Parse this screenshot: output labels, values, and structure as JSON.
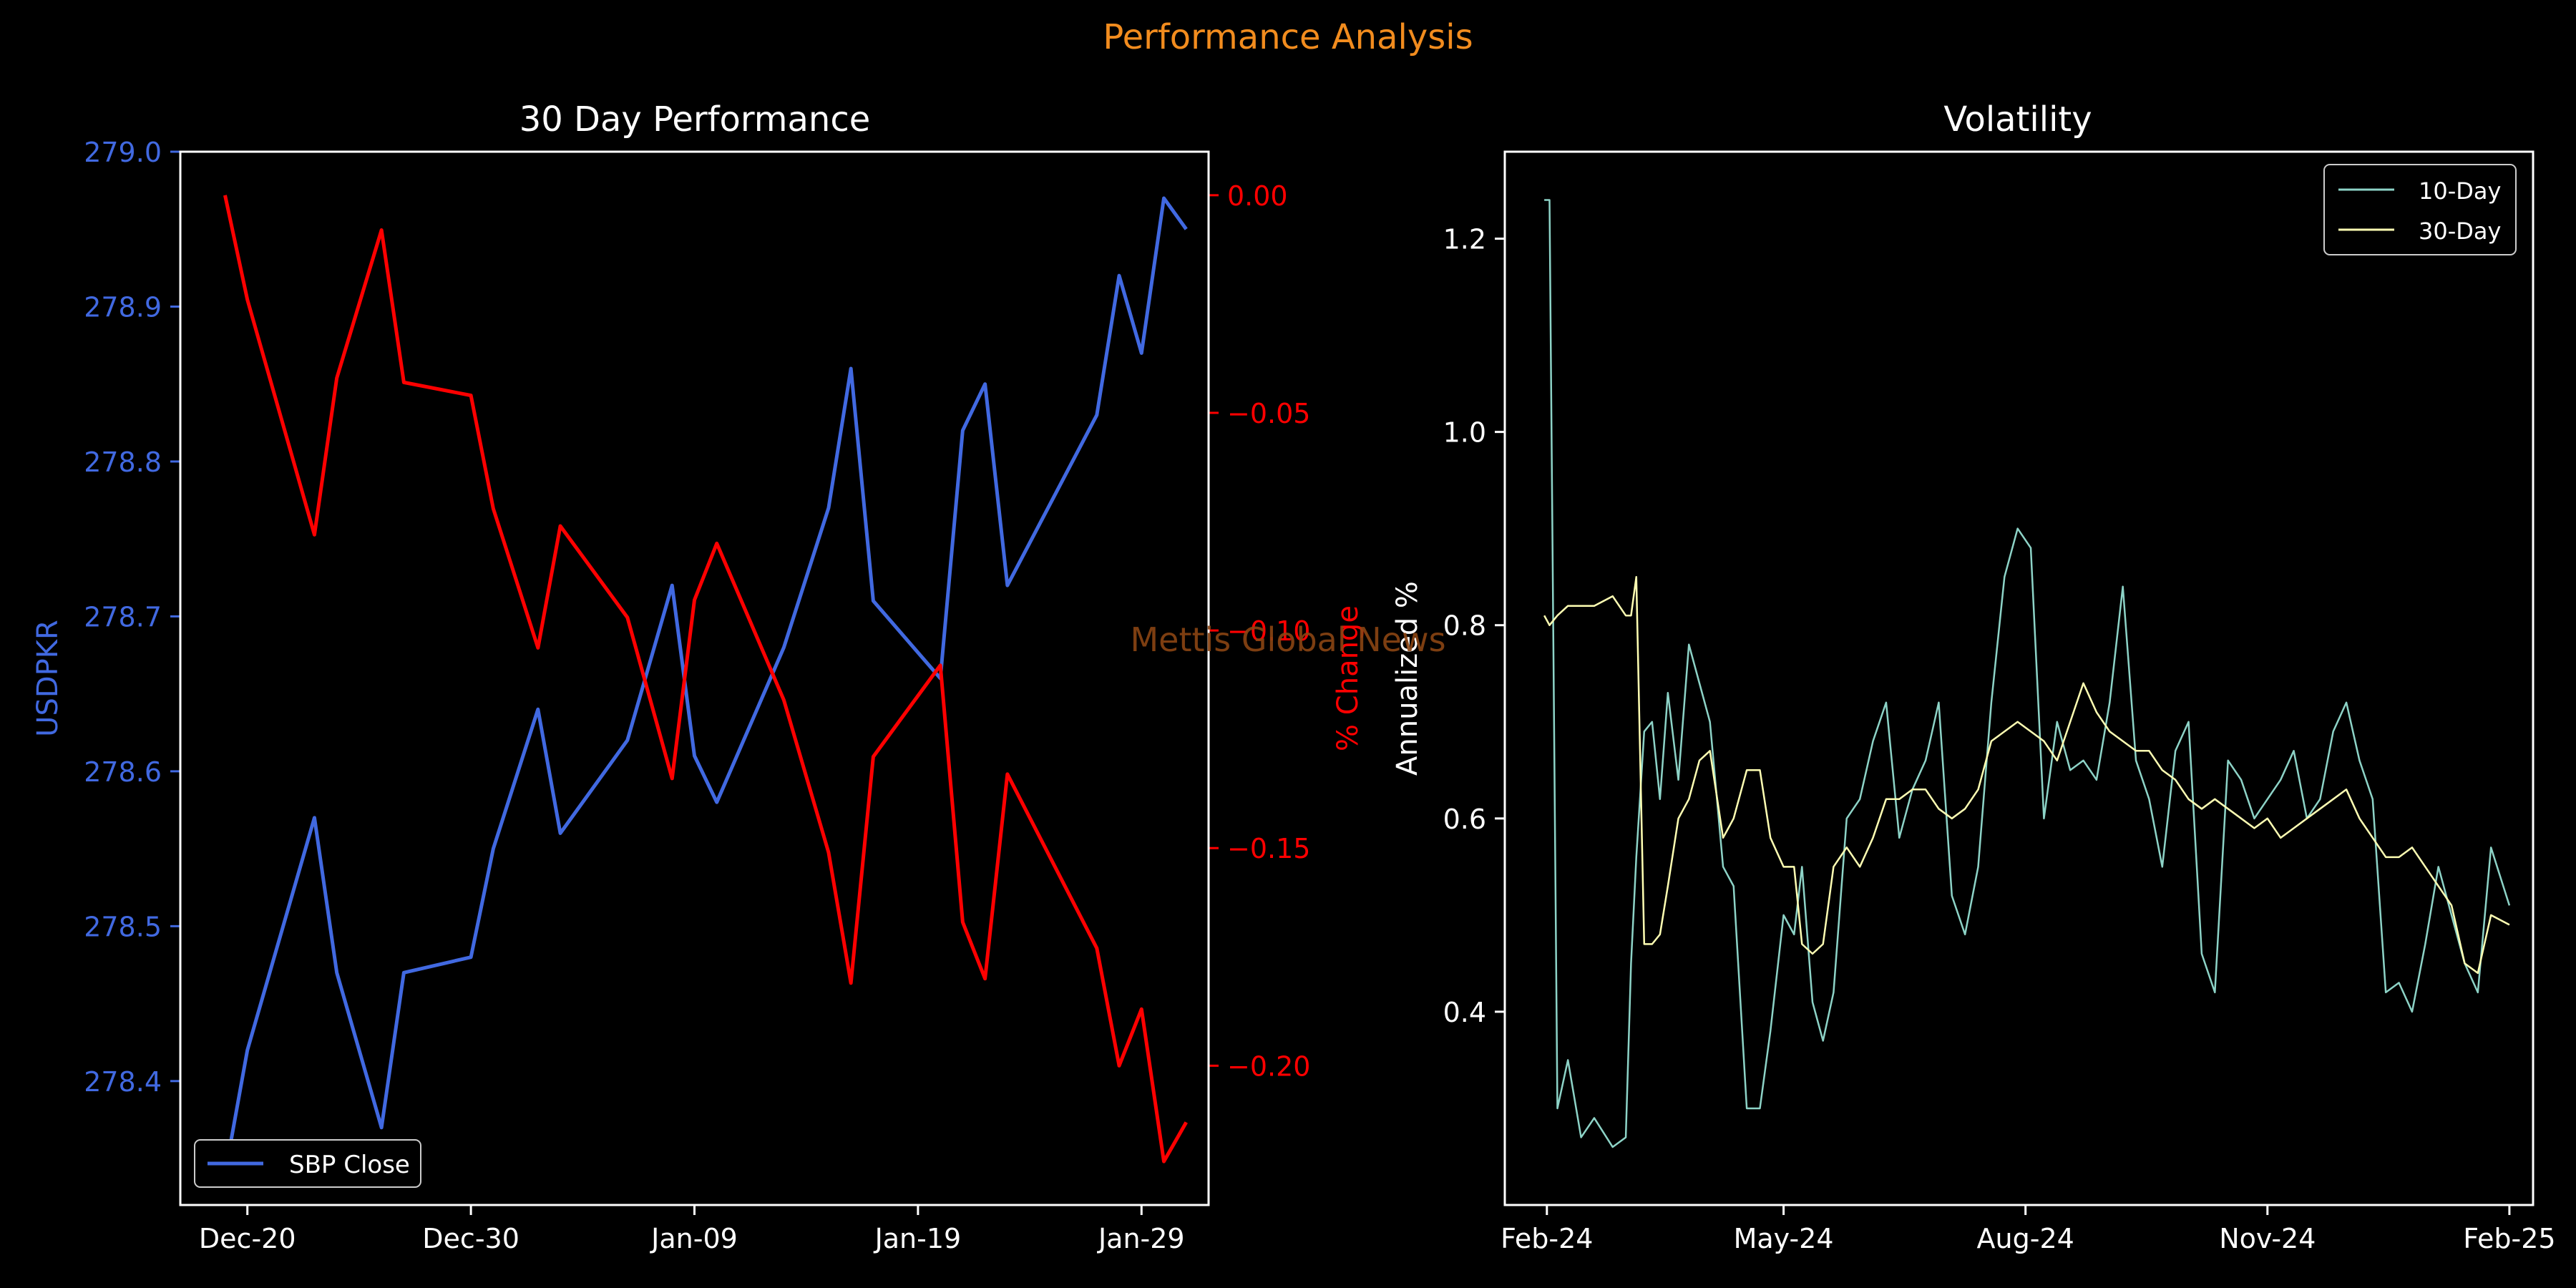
{
  "figure": {
    "suptitle": "Performance Analysis",
    "watermark": "Mettis Global News"
  },
  "colors": {
    "background": "#000000",
    "suptitle": "#f28c1e",
    "usd_line": "#4169e1",
    "pct_line": "#ff0000",
    "axis": "#ffffff",
    "vol10": "#8dd3c7",
    "vol30": "#ffffb3",
    "watermark": "#8b4513"
  },
  "chart_data": [
    {
      "type": "line",
      "title": "30 Day Performance",
      "xlabel": "",
      "ylabel": "USDPKR",
      "y2label": "% Change",
      "x_tick_labels": [
        "Dec-20",
        "Dec-30",
        "Jan-09",
        "Jan-19",
        "Jan-29"
      ],
      "x_range": [
        "2024-12-17",
        "2025-02-01"
      ],
      "ylim": [
        278.32,
        279.0
      ],
      "y_ticks": [
        "278.4",
        "278.5",
        "278.6",
        "278.7",
        "278.8",
        "278.9",
        "279.0"
      ],
      "y2lim": [
        -0.232,
        0.01
      ],
      "y2_ticks": [
        "0.00",
        "−0.05",
        "−0.10",
        "−0.15",
        "−0.20"
      ],
      "legend_position": "lower-left",
      "x": [
        "2024-12-19",
        "2024-12-20",
        "2024-12-23",
        "2024-12-24",
        "2024-12-26",
        "2024-12-27",
        "2024-12-30",
        "2024-12-31",
        "2025-01-02",
        "2025-01-03",
        "2025-01-06",
        "2025-01-08",
        "2025-01-09",
        "2025-01-10",
        "2025-01-13",
        "2025-01-15",
        "2025-01-16",
        "2025-01-17",
        "2025-01-20",
        "2025-01-21",
        "2025-01-22",
        "2025-01-23",
        "2025-01-27",
        "2025-01-28",
        "2025-01-29",
        "2025-01-30",
        "2025-01-31"
      ],
      "series": [
        {
          "name": "SBP Close",
          "axis": "left",
          "values": [
            278.34,
            278.42,
            278.57,
            278.47,
            278.37,
            278.47,
            278.48,
            278.55,
            278.64,
            278.56,
            278.62,
            278.72,
            278.61,
            278.58,
            278.68,
            278.77,
            278.86,
            278.71,
            278.66,
            278.82,
            278.85,
            278.72,
            278.83,
            278.92,
            278.87,
            278.97,
            278.95
          ]
        },
        {
          "name": "% Change",
          "axis": "right",
          "values": [
            0.0,
            -0.024,
            -0.078,
            -0.042,
            -0.008,
            -0.043,
            -0.046,
            -0.072,
            -0.104,
            -0.076,
            -0.097,
            -0.134,
            -0.093,
            -0.08,
            -0.116,
            -0.151,
            -0.181,
            -0.129,
            -0.108,
            -0.167,
            -0.18,
            -0.133,
            -0.173,
            -0.2,
            -0.187,
            -0.222,
            -0.213
          ]
        }
      ]
    },
    {
      "type": "line",
      "title": "Volatility",
      "xlabel": "",
      "ylabel": "Annualized %",
      "x_tick_labels": [
        "Feb-24",
        "May-24",
        "Aug-24",
        "Nov-24",
        "Feb-25"
      ],
      "x_range": [
        "2024-01-16",
        "2025-02-10"
      ],
      "ylim": [
        0.2,
        1.29
      ],
      "y_ticks": [
        "0.4",
        "0.6",
        "0.8",
        "1.0",
        "1.2"
      ],
      "legend_position": "top-right",
      "x": [
        "2024-01-31",
        "2024-02-02",
        "2024-02-05",
        "2024-02-09",
        "2024-02-14",
        "2024-02-19",
        "2024-02-26",
        "2024-03-02",
        "2024-03-04",
        "2024-03-06",
        "2024-03-09",
        "2024-03-12",
        "2024-03-15",
        "2024-03-18",
        "2024-03-22",
        "2024-03-26",
        "2024-03-30",
        "2024-04-03",
        "2024-04-08",
        "2024-04-12",
        "2024-04-17",
        "2024-04-22",
        "2024-04-26",
        "2024-05-01",
        "2024-05-05",
        "2024-05-08",
        "2024-05-12",
        "2024-05-16",
        "2024-05-20",
        "2024-05-25",
        "2024-05-30",
        "2024-06-04",
        "2024-06-09",
        "2024-06-14",
        "2024-06-19",
        "2024-06-24",
        "2024-06-29",
        "2024-07-04",
        "2024-07-09",
        "2024-07-14",
        "2024-07-19",
        "2024-07-24",
        "2024-07-29",
        "2024-08-03",
        "2024-08-08",
        "2024-08-13",
        "2024-08-18",
        "2024-08-23",
        "2024-08-28",
        "2024-09-02",
        "2024-09-07",
        "2024-09-12",
        "2024-09-17",
        "2024-09-22",
        "2024-09-27",
        "2024-10-02",
        "2024-10-07",
        "2024-10-12",
        "2024-10-17",
        "2024-10-22",
        "2024-10-27",
        "2024-11-01",
        "2024-11-06",
        "2024-11-11",
        "2024-11-16",
        "2024-11-21",
        "2024-11-26",
        "2024-12-01",
        "2024-12-06",
        "2024-12-11",
        "2024-12-16",
        "2024-12-21",
        "2024-12-26",
        "2024-12-31",
        "2025-01-05",
        "2025-01-10",
        "2025-01-15",
        "2025-01-20",
        "2025-01-25",
        "2025-02-01"
      ],
      "series": [
        {
          "name": "10-Day",
          "values": [
            1.24,
            1.24,
            0.3,
            0.35,
            0.27,
            0.29,
            0.26,
            0.27,
            0.45,
            0.56,
            0.69,
            0.7,
            0.62,
            0.73,
            0.64,
            0.78,
            0.74,
            0.7,
            0.55,
            0.53,
            0.3,
            0.3,
            0.38,
            0.5,
            0.48,
            0.55,
            0.41,
            0.37,
            0.42,
            0.6,
            0.62,
            0.68,
            0.72,
            0.58,
            0.63,
            0.66,
            0.72,
            0.52,
            0.48,
            0.55,
            0.72,
            0.85,
            0.9,
            0.88,
            0.6,
            0.7,
            0.65,
            0.66,
            0.64,
            0.72,
            0.84,
            0.66,
            0.62,
            0.55,
            0.67,
            0.7,
            0.46,
            0.42,
            0.66,
            0.64,
            0.6,
            0.62,
            0.64,
            0.67,
            0.6,
            0.62,
            0.69,
            0.72,
            0.66,
            0.62,
            0.42,
            0.43,
            0.4,
            0.47,
            0.55,
            0.5,
            0.45,
            0.42,
            0.57,
            0.51
          ],
          "line_width": "thin"
        },
        {
          "name": "30-Day",
          "values": [
            0.81,
            0.8,
            0.81,
            0.82,
            0.82,
            0.82,
            0.83,
            0.81,
            0.81,
            0.85,
            0.47,
            0.47,
            0.48,
            0.53,
            0.6,
            0.62,
            0.66,
            0.67,
            0.58,
            0.6,
            0.65,
            0.65,
            0.58,
            0.55,
            0.55,
            0.47,
            0.46,
            0.47,
            0.55,
            0.57,
            0.55,
            0.58,
            0.62,
            0.62,
            0.63,
            0.63,
            0.61,
            0.6,
            0.61,
            0.63,
            0.68,
            0.69,
            0.7,
            0.69,
            0.68,
            0.66,
            0.7,
            0.74,
            0.71,
            0.69,
            0.68,
            0.67,
            0.67,
            0.65,
            0.64,
            0.62,
            0.61,
            0.62,
            0.61,
            0.6,
            0.59,
            0.6,
            0.58,
            0.59,
            0.6,
            0.61,
            0.62,
            0.63,
            0.6,
            0.58,
            0.56,
            0.56,
            0.57,
            0.55,
            0.53,
            0.51,
            0.45,
            0.44,
            0.5,
            0.49
          ],
          "line_width": "thin"
        }
      ]
    }
  ]
}
